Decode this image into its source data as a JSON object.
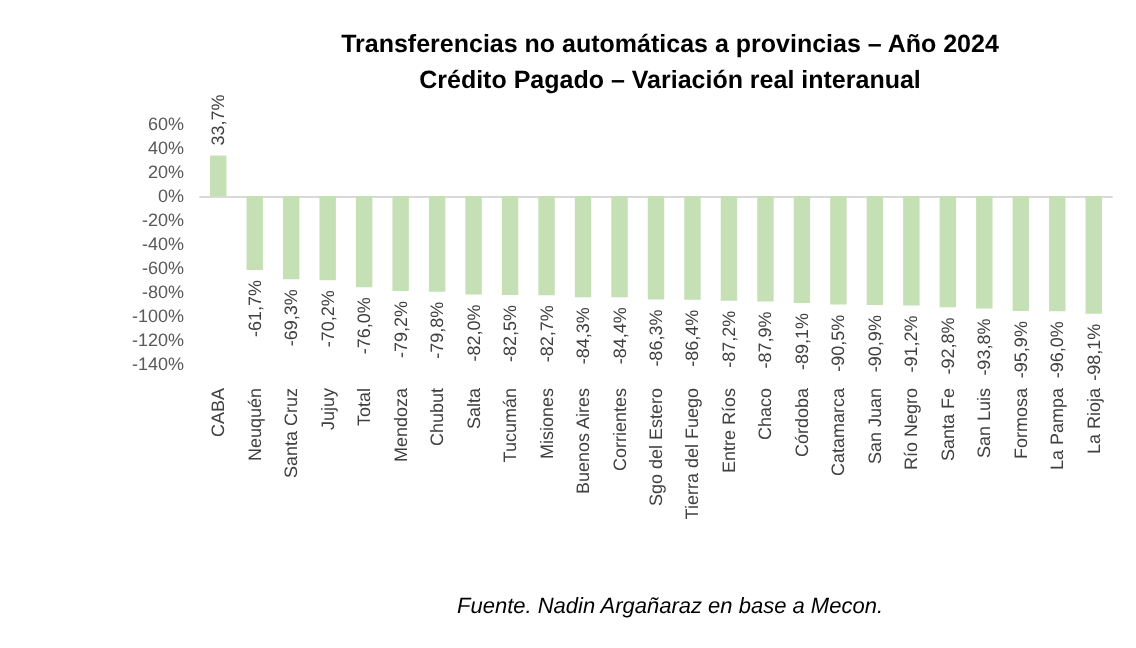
{
  "chart_data": {
    "type": "bar",
    "title": "Transferencias no automáticas a provincias – Año 2024",
    "subtitle": "Crédito Pagado – Variación real interanual",
    "categories": [
      "CABA",
      "Neuquén",
      "Santa Cruz",
      "Jujuy",
      "Total",
      "Mendoza",
      "Chubut",
      "Salta",
      "Tucumán",
      "Misiones",
      "Buenos Aires",
      "Corrientes",
      "Sgo del Estero",
      "Tierra del Fuego",
      "Entre Ríos",
      "Chaco",
      "Córdoba",
      "Catamarca",
      "San Juan",
      "Río Negro",
      "Santa Fe",
      "San Luis",
      "Formosa",
      "La Pampa",
      "La Rioja"
    ],
    "values": [
      33.7,
      -61.7,
      -69.3,
      -70.2,
      -76.0,
      -79.2,
      -79.8,
      -82.0,
      -82.5,
      -82.7,
      -84.3,
      -84.4,
      -86.3,
      -86.4,
      -87.2,
      -87.9,
      -89.1,
      -90.5,
      -90.9,
      -91.2,
      -92.8,
      -93.8,
      -95.9,
      -96.0,
      -98.1
    ],
    "value_labels": [
      "33,7%",
      "-61,7%",
      "-69,3%",
      "-70,2%",
      "-76,0%",
      "-79,2%",
      "-79,8%",
      "-82,0%",
      "-82,5%",
      "-82,7%",
      "-84,3%",
      "-84,4%",
      "-86,3%",
      "-86,4%",
      "-87,2%",
      "-87,9%",
      "-89,1%",
      "-90,5%",
      "-90,9%",
      "-91,2%",
      "-92,8%",
      "-93,8%",
      "-95,9%",
      "-96,0%",
      "-98,1%"
    ],
    "color": "#c5e0b4",
    "ylim": [
      -140,
      60
    ],
    "yticks": [
      {
        "value": -140,
        "label": "-140%"
      },
      {
        "value": -120,
        "label": "-120%"
      },
      {
        "value": -100,
        "label": "-100%"
      },
      {
        "value": -80,
        "label": "-80%"
      },
      {
        "value": -60,
        "label": "-60%"
      },
      {
        "value": -40,
        "label": "-40%"
      },
      {
        "value": -20,
        "label": "-20%"
      },
      {
        "value": 0,
        "label": "0%"
      },
      {
        "value": 20,
        "label": "20%"
      },
      {
        "value": 40,
        "label": "40%"
      },
      {
        "value": 60,
        "label": "60%"
      }
    ],
    "annotations": [
      "Fuente. Nadin Argañaraz en base a Mecon."
    ]
  }
}
